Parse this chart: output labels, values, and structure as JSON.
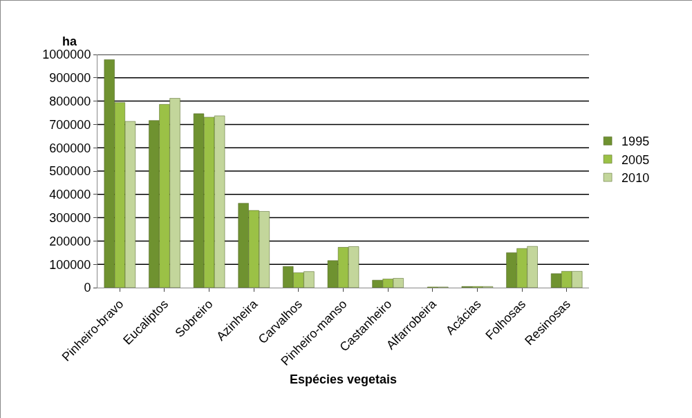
{
  "chart_data": {
    "type": "bar",
    "ylabel": "ha",
    "xlabel": "Espécies vegetais",
    "categories": [
      "Pinheiro-bravo",
      "Eucaliptos",
      "Sobreiro",
      "Azinheira",
      "Carvalhos",
      "Pinheiro-manso",
      "Castanheiro",
      "Alfarrobeira",
      "Acácias",
      "Folhosas",
      "Resinosas"
    ],
    "series": [
      {
        "name": "1995",
        "color": "#6f9230",
        "values": [
          978000,
          717000,
          746000,
          362000,
          91000,
          116000,
          32000,
          null,
          5000,
          150000,
          60000
        ]
      },
      {
        "name": "2005",
        "color": "#9bc146",
        "values": [
          794000,
          786000,
          731000,
          331000,
          64000,
          173000,
          37000,
          3000,
          5000,
          168000,
          70000
        ]
      },
      {
        "name": "2010",
        "color": "#c3d69b",
        "values": [
          713000,
          812000,
          737000,
          327000,
          69000,
          176000,
          40000,
          3000,
          5000,
          177000,
          70000
        ]
      }
    ],
    "ylim": [
      0,
      1000000
    ],
    "yticks": [
      0,
      100000,
      200000,
      300000,
      400000,
      500000,
      600000,
      700000,
      800000,
      900000,
      1000000
    ],
    "grid": "y",
    "legend": "right"
  }
}
